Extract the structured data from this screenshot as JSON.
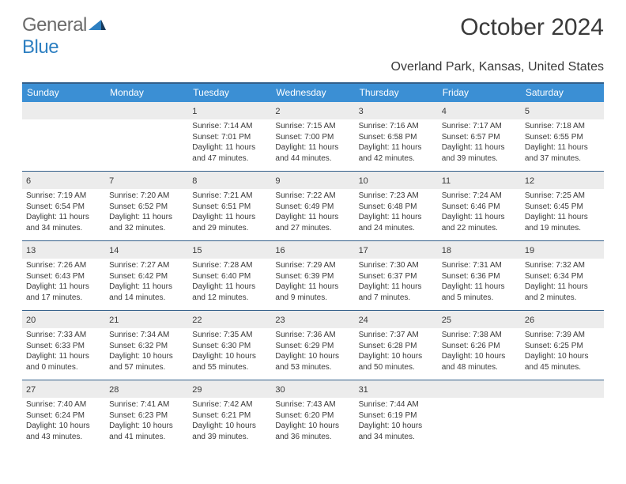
{
  "logo": {
    "text_gray": "General",
    "text_blue": "Blue"
  },
  "title": "October 2024",
  "subtitle": "Overland Park, Kansas, United States",
  "colors": {
    "header_bg": "#3b8fd4",
    "header_border": "#335f8a",
    "daynum_bg": "#ececec",
    "text": "#3a3a3a",
    "logo_gray": "#6b6b6b",
    "logo_blue": "#2d7fc1",
    "page_bg": "#ffffff"
  },
  "weekdays": [
    "Sunday",
    "Monday",
    "Tuesday",
    "Wednesday",
    "Thursday",
    "Friday",
    "Saturday"
  ],
  "grid": {
    "first_weekday_index": 2,
    "days_in_month": 31
  },
  "days": [
    {
      "n": 1,
      "sr": "7:14 AM",
      "ss": "7:01 PM",
      "dl": "11 hours and 47 minutes."
    },
    {
      "n": 2,
      "sr": "7:15 AM",
      "ss": "7:00 PM",
      "dl": "11 hours and 44 minutes."
    },
    {
      "n": 3,
      "sr": "7:16 AM",
      "ss": "6:58 PM",
      "dl": "11 hours and 42 minutes."
    },
    {
      "n": 4,
      "sr": "7:17 AM",
      "ss": "6:57 PM",
      "dl": "11 hours and 39 minutes."
    },
    {
      "n": 5,
      "sr": "7:18 AM",
      "ss": "6:55 PM",
      "dl": "11 hours and 37 minutes."
    },
    {
      "n": 6,
      "sr": "7:19 AM",
      "ss": "6:54 PM",
      "dl": "11 hours and 34 minutes."
    },
    {
      "n": 7,
      "sr": "7:20 AM",
      "ss": "6:52 PM",
      "dl": "11 hours and 32 minutes."
    },
    {
      "n": 8,
      "sr": "7:21 AM",
      "ss": "6:51 PM",
      "dl": "11 hours and 29 minutes."
    },
    {
      "n": 9,
      "sr": "7:22 AM",
      "ss": "6:49 PM",
      "dl": "11 hours and 27 minutes."
    },
    {
      "n": 10,
      "sr": "7:23 AM",
      "ss": "6:48 PM",
      "dl": "11 hours and 24 minutes."
    },
    {
      "n": 11,
      "sr": "7:24 AM",
      "ss": "6:46 PM",
      "dl": "11 hours and 22 minutes."
    },
    {
      "n": 12,
      "sr": "7:25 AM",
      "ss": "6:45 PM",
      "dl": "11 hours and 19 minutes."
    },
    {
      "n": 13,
      "sr": "7:26 AM",
      "ss": "6:43 PM",
      "dl": "11 hours and 17 minutes."
    },
    {
      "n": 14,
      "sr": "7:27 AM",
      "ss": "6:42 PM",
      "dl": "11 hours and 14 minutes."
    },
    {
      "n": 15,
      "sr": "7:28 AM",
      "ss": "6:40 PM",
      "dl": "11 hours and 12 minutes."
    },
    {
      "n": 16,
      "sr": "7:29 AM",
      "ss": "6:39 PM",
      "dl": "11 hours and 9 minutes."
    },
    {
      "n": 17,
      "sr": "7:30 AM",
      "ss": "6:37 PM",
      "dl": "11 hours and 7 minutes."
    },
    {
      "n": 18,
      "sr": "7:31 AM",
      "ss": "6:36 PM",
      "dl": "11 hours and 5 minutes."
    },
    {
      "n": 19,
      "sr": "7:32 AM",
      "ss": "6:34 PM",
      "dl": "11 hours and 2 minutes."
    },
    {
      "n": 20,
      "sr": "7:33 AM",
      "ss": "6:33 PM",
      "dl": "11 hours and 0 minutes."
    },
    {
      "n": 21,
      "sr": "7:34 AM",
      "ss": "6:32 PM",
      "dl": "10 hours and 57 minutes."
    },
    {
      "n": 22,
      "sr": "7:35 AM",
      "ss": "6:30 PM",
      "dl": "10 hours and 55 minutes."
    },
    {
      "n": 23,
      "sr": "7:36 AM",
      "ss": "6:29 PM",
      "dl": "10 hours and 53 minutes."
    },
    {
      "n": 24,
      "sr": "7:37 AM",
      "ss": "6:28 PM",
      "dl": "10 hours and 50 minutes."
    },
    {
      "n": 25,
      "sr": "7:38 AM",
      "ss": "6:26 PM",
      "dl": "10 hours and 48 minutes."
    },
    {
      "n": 26,
      "sr": "7:39 AM",
      "ss": "6:25 PM",
      "dl": "10 hours and 45 minutes."
    },
    {
      "n": 27,
      "sr": "7:40 AM",
      "ss": "6:24 PM",
      "dl": "10 hours and 43 minutes."
    },
    {
      "n": 28,
      "sr": "7:41 AM",
      "ss": "6:23 PM",
      "dl": "10 hours and 41 minutes."
    },
    {
      "n": 29,
      "sr": "7:42 AM",
      "ss": "6:21 PM",
      "dl": "10 hours and 39 minutes."
    },
    {
      "n": 30,
      "sr": "7:43 AM",
      "ss": "6:20 PM",
      "dl": "10 hours and 36 minutes."
    },
    {
      "n": 31,
      "sr": "7:44 AM",
      "ss": "6:19 PM",
      "dl": "10 hours and 34 minutes."
    }
  ],
  "labels": {
    "sunrise": "Sunrise:",
    "sunset": "Sunset:",
    "daylight": "Daylight:"
  }
}
